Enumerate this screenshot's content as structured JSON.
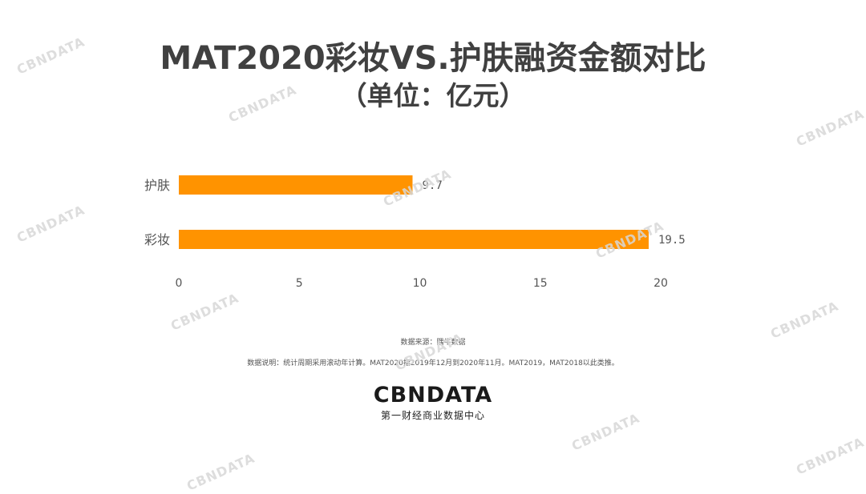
{
  "header": {
    "title": "MAT2020彩妆VS.护肤融资金额对比",
    "subtitle": "（单位：亿元）"
  },
  "chart_data": {
    "type": "bar",
    "orientation": "horizontal",
    "categories": [
      "护肤",
      "彩妆"
    ],
    "values": [
      9.7,
      19.5
    ],
    "value_labels": [
      "9.7",
      "19.5"
    ],
    "x_ticks": [
      "0",
      "5",
      "10",
      "15",
      "20"
    ],
    "xlim": [
      0,
      20
    ],
    "grid": false,
    "bar_color": "#FF9300"
  },
  "notes": {
    "source": "数据来源：隅牛数据",
    "description": "数据说明：统计周期采用滚动年计算。MAT2020指2019年12月到2020年11月。MAT2019，MAT2018以此类推。"
  },
  "logo": {
    "wordmark": "CBNDATA",
    "tagline": "第一财经商业数据中心"
  }
}
